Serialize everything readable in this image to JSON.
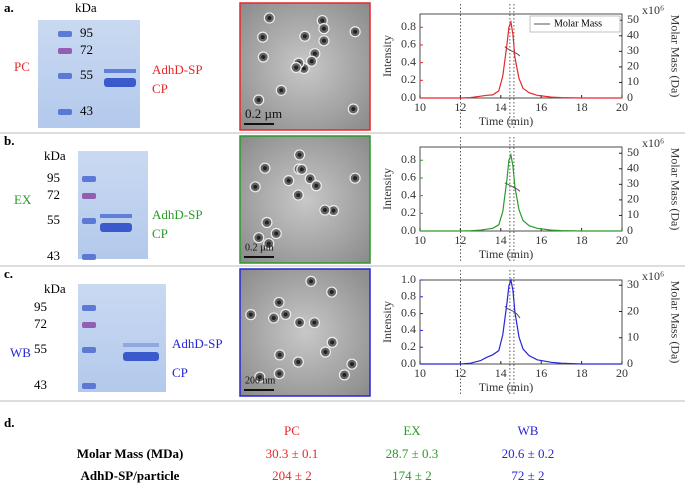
{
  "panels": [
    {
      "letter": "a.",
      "unit": "kDa",
      "markers": [
        95,
        72,
        55,
        43
      ],
      "bands": [
        "AdhD-SP",
        "CP"
      ],
      "sample": "PC",
      "scale_bar": "0.2 µm",
      "color": "#e8262a"
    },
    {
      "letter": "b.",
      "unit": "kDa",
      "markers": [
        95,
        72,
        55,
        43
      ],
      "bands": [
        "AdhD-SP",
        "CP"
      ],
      "sample": "EX",
      "scale_bar": "0.2 µm",
      "color": "#2a9a2a"
    },
    {
      "letter": "c.",
      "unit": "kDa",
      "markers": [
        95,
        72,
        55,
        43
      ],
      "bands": [
        "AdhD-SP",
        "CP"
      ],
      "sample": "WB",
      "scale_bar": "200 nm",
      "color": "#2626d6"
    }
  ],
  "reference_times": [
    12,
    14.45,
    14.65
  ],
  "chart_data": [
    {
      "type": "line",
      "ylabel": "Intensity",
      "y2label": "Molar Mass (Da)",
      "y2_scale": "x10⁶",
      "xlabel": "Time (min)",
      "xlim": [
        10,
        20
      ],
      "xticks": [
        10,
        12,
        14,
        16,
        18,
        20
      ],
      "ylim": [
        0,
        0.95
      ],
      "yticks": [
        {
          "value": 0,
          "label": "0.0"
        },
        {
          "value": 0.2,
          "label": "0.2"
        },
        {
          "value": 0.4,
          "label": "0.4"
        },
        {
          "value": 0.6,
          "label": "0.6"
        },
        {
          "value": 0.8,
          "label": "0.8"
        }
      ],
      "y2lim": [
        0,
        54
      ],
      "y2ticks": [
        0,
        10,
        20,
        30,
        40,
        50
      ],
      "legend": "upper right",
      "series": [
        {
          "color": "#e8262a",
          "x": [
            10,
            11,
            12,
            12.5,
            13,
            13.3,
            13.6,
            13.9,
            14.1,
            14.3,
            14.4,
            14.5,
            14.6,
            14.7,
            14.9,
            15.1,
            15.4,
            15.8,
            16.5,
            17,
            18,
            19,
            20
          ],
          "values": [
            0,
            0,
            0,
            0.005,
            0.02,
            0.03,
            0.035,
            0.08,
            0.25,
            0.6,
            0.8,
            0.86,
            0.72,
            0.46,
            0.22,
            0.11,
            0.06,
            0.03,
            0.01,
            0.005,
            0,
            0,
            0
          ]
        },
        {
          "name": "Molar Mass",
          "color": "#555555",
          "axis": "y2",
          "x": [
            14.2,
            14.35,
            14.5,
            14.65,
            14.8,
            14.95
          ],
          "values": [
            33,
            31.5,
            30.5,
            29.5,
            28.5,
            27
          ]
        }
      ]
    },
    {
      "type": "line",
      "ylabel": "Intensity",
      "y2label": "Molar Mass (Da)",
      "y2_scale": "x10⁶",
      "xlabel": "Time (min)",
      "xlim": [
        10,
        20
      ],
      "xticks": [
        10,
        12,
        14,
        16,
        18,
        20
      ],
      "ylim": [
        0,
        0.95
      ],
      "yticks": [
        {
          "value": 0,
          "label": "0.0"
        },
        {
          "value": 0.2,
          "label": "0.2"
        },
        {
          "value": 0.4,
          "label": "0.4"
        },
        {
          "value": 0.6,
          "label": "0.6"
        },
        {
          "value": 0.8,
          "label": "0.8"
        }
      ],
      "y2lim": [
        0,
        54
      ],
      "y2ticks": [
        0,
        10,
        20,
        30,
        40,
        50
      ],
      "series": [
        {
          "color": "#2a9a2a",
          "x": [
            10,
            11,
            12,
            12.5,
            13,
            13.3,
            13.6,
            13.9,
            14.1,
            14.3,
            14.4,
            14.5,
            14.6,
            14.7,
            14.9,
            15.1,
            15.4,
            15.8,
            16.5,
            17,
            18,
            19,
            20
          ],
          "values": [
            0,
            0,
            0,
            0.003,
            0.01,
            0.02,
            0.03,
            0.07,
            0.22,
            0.58,
            0.8,
            0.86,
            0.74,
            0.5,
            0.24,
            0.12,
            0.06,
            0.03,
            0.01,
            0.005,
            0,
            0,
            0
          ]
        },
        {
          "color": "#555555",
          "axis": "y2",
          "x": [
            14.2,
            14.35,
            14.5,
            14.65,
            14.8,
            14.95
          ],
          "values": [
            31,
            30,
            29,
            28,
            27,
            25.5
          ]
        }
      ]
    },
    {
      "type": "line",
      "ylabel": "Intensity",
      "y2label": "Molar Mass (Da)",
      "y2_scale": "x10⁶",
      "xlabel": "Time (min)",
      "xlim": [
        10,
        20
      ],
      "xticks": [
        10,
        12,
        14,
        16,
        18,
        20
      ],
      "ylim": [
        0,
        1.0
      ],
      "yticks": [
        {
          "value": 0,
          "label": "0.0"
        },
        {
          "value": 0.2,
          "label": "0.2"
        },
        {
          "value": 0.4,
          "label": "0.4"
        },
        {
          "value": 0.6,
          "label": "0.6"
        },
        {
          "value": 0.8,
          "label": "0.8"
        },
        {
          "value": 1.0,
          "label": "1.0"
        }
      ],
      "y2lim": [
        0,
        32
      ],
      "y2ticks": [
        0,
        10,
        20,
        30
      ],
      "series": [
        {
          "color": "#2626d6",
          "x": [
            10,
            11,
            12,
            12.5,
            13,
            13.3,
            13.6,
            13.9,
            14.1,
            14.3,
            14.4,
            14.5,
            14.6,
            14.7,
            14.9,
            15.1,
            15.4,
            15.8,
            16.5,
            17,
            18,
            19,
            20
          ],
          "values": [
            0,
            0,
            0,
            0.01,
            0.04,
            0.08,
            0.11,
            0.16,
            0.35,
            0.72,
            0.93,
            1.0,
            0.88,
            0.62,
            0.32,
            0.18,
            0.1,
            0.05,
            0.02,
            0.01,
            0,
            0,
            0
          ]
        },
        {
          "color": "#555555",
          "axis": "y2",
          "x": [
            14.2,
            14.35,
            14.5,
            14.65,
            14.8,
            14.95
          ],
          "values": [
            22,
            21,
            20.5,
            20,
            19,
            17.5
          ]
        }
      ]
    }
  ],
  "table": {
    "letter": "d.",
    "columns": [
      "PC",
      "EX",
      "WB"
    ],
    "colors": [
      "#e8262a",
      "#2a9a2a",
      "#2626d6"
    ],
    "rows": [
      {
        "label": "Molar Mass (MDa)",
        "cells": [
          "30.3 ± 0.1",
          "28.7 ± 0.3",
          "20.6 ± 0.2"
        ]
      },
      {
        "label": "AdhD-SP/particle",
        "cells": [
          "204 ± 2",
          "174 ± 2",
          "72 ± 2"
        ]
      }
    ]
  }
}
